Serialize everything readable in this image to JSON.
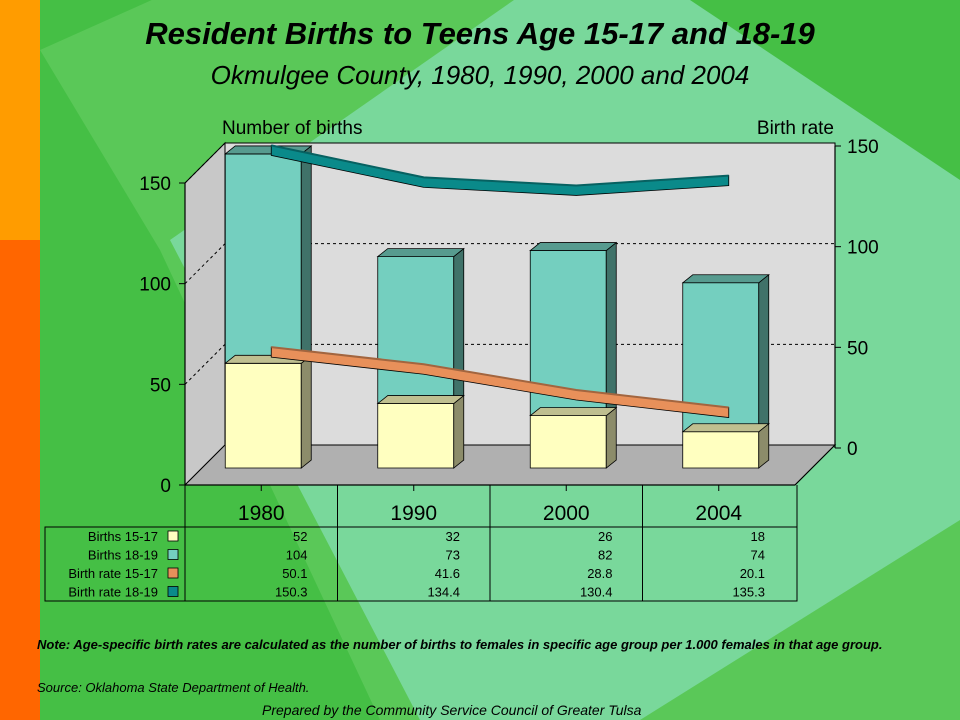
{
  "title": "Resident Births to Teens Age 15-17 and 18-19",
  "subtitle": "Okmulgee County, 1980, 1990, 2000 and 2004",
  "note": "Note:  Age-specific birth rates are calculated as the number of births to females in specific age group per 1.000 females in that age group.",
  "source": "Source:  Oklahoma State Department of Health.",
  "prepared_by": "Prepared by the Community Service Council of Greater Tulsa",
  "colors": {
    "births_15_17": "#ffffc0",
    "births_18_19": "#74cfbf",
    "rate_15_17": "#e8905a",
    "rate_18_19": "#0a8a8a"
  },
  "chart_data": {
    "type": "bar",
    "categories": [
      "1980",
      "1990",
      "2000",
      "2004"
    ],
    "ylabel": "Number of births",
    "y2label": "Birth rate",
    "ylim": [
      0,
      150
    ],
    "yticks": [
      "0",
      "50",
      "100",
      "150"
    ],
    "y2lim": [
      0,
      150
    ],
    "y2ticks": [
      "0",
      "50",
      "100",
      "150"
    ],
    "stacked": true,
    "series": [
      {
        "name": "Births 15-17",
        "type": "bar",
        "axis": "left",
        "values": [
          52,
          32,
          26,
          18
        ],
        "labels": [
          "52",
          "32",
          "26",
          "18"
        ]
      },
      {
        "name": "Births 18-19",
        "type": "bar",
        "axis": "left",
        "values": [
          104,
          73,
          82,
          74
        ],
        "labels": [
          "104",
          "73",
          "82",
          "74"
        ]
      },
      {
        "name": "Birth rate 15-17",
        "type": "line",
        "axis": "right",
        "values": [
          50.1,
          41.6,
          28.8,
          20.1
        ],
        "labels": [
          "50.1",
          "41.6",
          "28.8",
          "20.1"
        ]
      },
      {
        "name": "Birth rate 18-19",
        "type": "line",
        "axis": "right",
        "values": [
          150.3,
          134.4,
          130.4,
          135.3
        ],
        "labels": [
          "150.3",
          "134.4",
          "130.4",
          "135.3"
        ]
      }
    ],
    "data_table": true,
    "grid": "dashed horizontal"
  }
}
